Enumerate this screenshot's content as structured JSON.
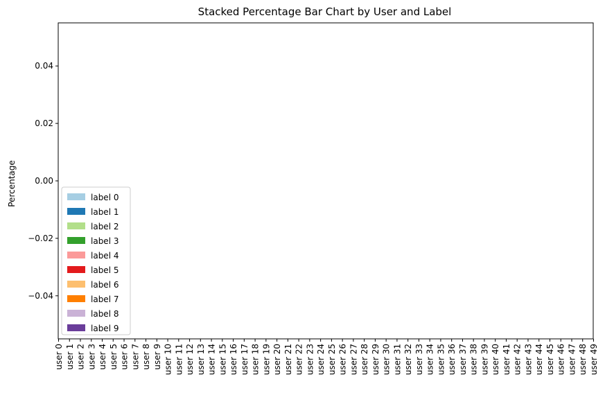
{
  "chart_data": {
    "type": "bar",
    "stacked": true,
    "title": "Stacked Percentage Bar Chart by User and Label",
    "xlabel": "",
    "ylabel": "Percentage",
    "ylim": [
      -0.055,
      0.055
    ],
    "yticks": [
      -0.04,
      -0.02,
      0.0,
      0.02,
      0.04
    ],
    "ytick_labels": [
      "−0.04",
      "−0.02",
      "0.00",
      "0.02",
      "0.04"
    ],
    "grid": false,
    "legend_position": "lower-left",
    "categories": [
      "user 0",
      "user 1",
      "user 2",
      "user 3",
      "user 4",
      "user 5",
      "user 6",
      "user 7",
      "user 8",
      "user 9",
      "user 10",
      "user 11",
      "user 12",
      "user 13",
      "user 14",
      "user 15",
      "user 16",
      "user 17",
      "user 18",
      "user 19",
      "user 20",
      "user 21",
      "user 22",
      "user 23",
      "user 24",
      "user 25",
      "user 26",
      "user 27",
      "user 28",
      "user 29",
      "user 30",
      "user 31",
      "user 32",
      "user 33",
      "user 34",
      "user 35",
      "user 36",
      "user 37",
      "user 38",
      "user 39",
      "user 40",
      "user 41",
      "user 42",
      "user 43",
      "user 44",
      "user 45",
      "user 46",
      "user 47",
      "user 48",
      "user 49"
    ],
    "series": [
      {
        "name": "label 0",
        "color": "#a6cee3",
        "values": [
          0,
          0,
          0,
          0,
          0,
          0,
          0,
          0,
          0,
          0,
          0,
          0,
          0,
          0,
          0,
          0,
          0,
          0,
          0,
          0,
          0,
          0,
          0,
          0,
          0,
          0,
          0,
          0,
          0,
          0,
          0,
          0,
          0,
          0,
          0,
          0,
          0,
          0,
          0,
          0,
          0,
          0,
          0,
          0,
          0,
          0,
          0,
          0,
          0,
          0
        ]
      },
      {
        "name": "label 1",
        "color": "#1f78b4",
        "values": [
          0,
          0,
          0,
          0,
          0,
          0,
          0,
          0,
          0,
          0,
          0,
          0,
          0,
          0,
          0,
          0,
          0,
          0,
          0,
          0,
          0,
          0,
          0,
          0,
          0,
          0,
          0,
          0,
          0,
          0,
          0,
          0,
          0,
          0,
          0,
          0,
          0,
          0,
          0,
          0,
          0,
          0,
          0,
          0,
          0,
          0,
          0,
          0,
          0,
          0
        ]
      },
      {
        "name": "label 2",
        "color": "#b2df8a",
        "values": [
          0,
          0,
          0,
          0,
          0,
          0,
          0,
          0,
          0,
          0,
          0,
          0,
          0,
          0,
          0,
          0,
          0,
          0,
          0,
          0,
          0,
          0,
          0,
          0,
          0,
          0,
          0,
          0,
          0,
          0,
          0,
          0,
          0,
          0,
          0,
          0,
          0,
          0,
          0,
          0,
          0,
          0,
          0,
          0,
          0,
          0,
          0,
          0,
          0,
          0
        ]
      },
      {
        "name": "label 3",
        "color": "#33a02c",
        "values": [
          0,
          0,
          0,
          0,
          0,
          0,
          0,
          0,
          0,
          0,
          0,
          0,
          0,
          0,
          0,
          0,
          0,
          0,
          0,
          0,
          0,
          0,
          0,
          0,
          0,
          0,
          0,
          0,
          0,
          0,
          0,
          0,
          0,
          0,
          0,
          0,
          0,
          0,
          0,
          0,
          0,
          0,
          0,
          0,
          0,
          0,
          0,
          0,
          0,
          0
        ]
      },
      {
        "name": "label 4",
        "color": "#fb9a99",
        "values": [
          0,
          0,
          0,
          0,
          0,
          0,
          0,
          0,
          0,
          0,
          0,
          0,
          0,
          0,
          0,
          0,
          0,
          0,
          0,
          0,
          0,
          0,
          0,
          0,
          0,
          0,
          0,
          0,
          0,
          0,
          0,
          0,
          0,
          0,
          0,
          0,
          0,
          0,
          0,
          0,
          0,
          0,
          0,
          0,
          0,
          0,
          0,
          0,
          0,
          0
        ]
      },
      {
        "name": "label 5",
        "color": "#e31a1c",
        "values": [
          0,
          0,
          0,
          0,
          0,
          0,
          0,
          0,
          0,
          0,
          0,
          0,
          0,
          0,
          0,
          0,
          0,
          0,
          0,
          0,
          0,
          0,
          0,
          0,
          0,
          0,
          0,
          0,
          0,
          0,
          0,
          0,
          0,
          0,
          0,
          0,
          0,
          0,
          0,
          0,
          0,
          0,
          0,
          0,
          0,
          0,
          0,
          0,
          0,
          0
        ]
      },
      {
        "name": "label 6",
        "color": "#fdbf6f",
        "values": [
          0,
          0,
          0,
          0,
          0,
          0,
          0,
          0,
          0,
          0,
          0,
          0,
          0,
          0,
          0,
          0,
          0,
          0,
          0,
          0,
          0,
          0,
          0,
          0,
          0,
          0,
          0,
          0,
          0,
          0,
          0,
          0,
          0,
          0,
          0,
          0,
          0,
          0,
          0,
          0,
          0,
          0,
          0,
          0,
          0,
          0,
          0,
          0,
          0,
          0
        ]
      },
      {
        "name": "label 7",
        "color": "#ff7f00",
        "values": [
          0,
          0,
          0,
          0,
          0,
          0,
          0,
          0,
          0,
          0,
          0,
          0,
          0,
          0,
          0,
          0,
          0,
          0,
          0,
          0,
          0,
          0,
          0,
          0,
          0,
          0,
          0,
          0,
          0,
          0,
          0,
          0,
          0,
          0,
          0,
          0,
          0,
          0,
          0,
          0,
          0,
          0,
          0,
          0,
          0,
          0,
          0,
          0,
          0,
          0
        ]
      },
      {
        "name": "label 8",
        "color": "#cab2d6",
        "values": [
          0,
          0,
          0,
          0,
          0,
          0,
          0,
          0,
          0,
          0,
          0,
          0,
          0,
          0,
          0,
          0,
          0,
          0,
          0,
          0,
          0,
          0,
          0,
          0,
          0,
          0,
          0,
          0,
          0,
          0,
          0,
          0,
          0,
          0,
          0,
          0,
          0,
          0,
          0,
          0,
          0,
          0,
          0,
          0,
          0,
          0,
          0,
          0,
          0,
          0
        ]
      },
      {
        "name": "label 9",
        "color": "#6a3d9a",
        "values": [
          0,
          0,
          0,
          0,
          0,
          0,
          0,
          0,
          0,
          0,
          0,
          0,
          0,
          0,
          0,
          0,
          0,
          0,
          0,
          0,
          0,
          0,
          0,
          0,
          0,
          0,
          0,
          0,
          0,
          0,
          0,
          0,
          0,
          0,
          0,
          0,
          0,
          0,
          0,
          0,
          0,
          0,
          0,
          0,
          0,
          0,
          0,
          0,
          0,
          0
        ]
      }
    ]
  }
}
